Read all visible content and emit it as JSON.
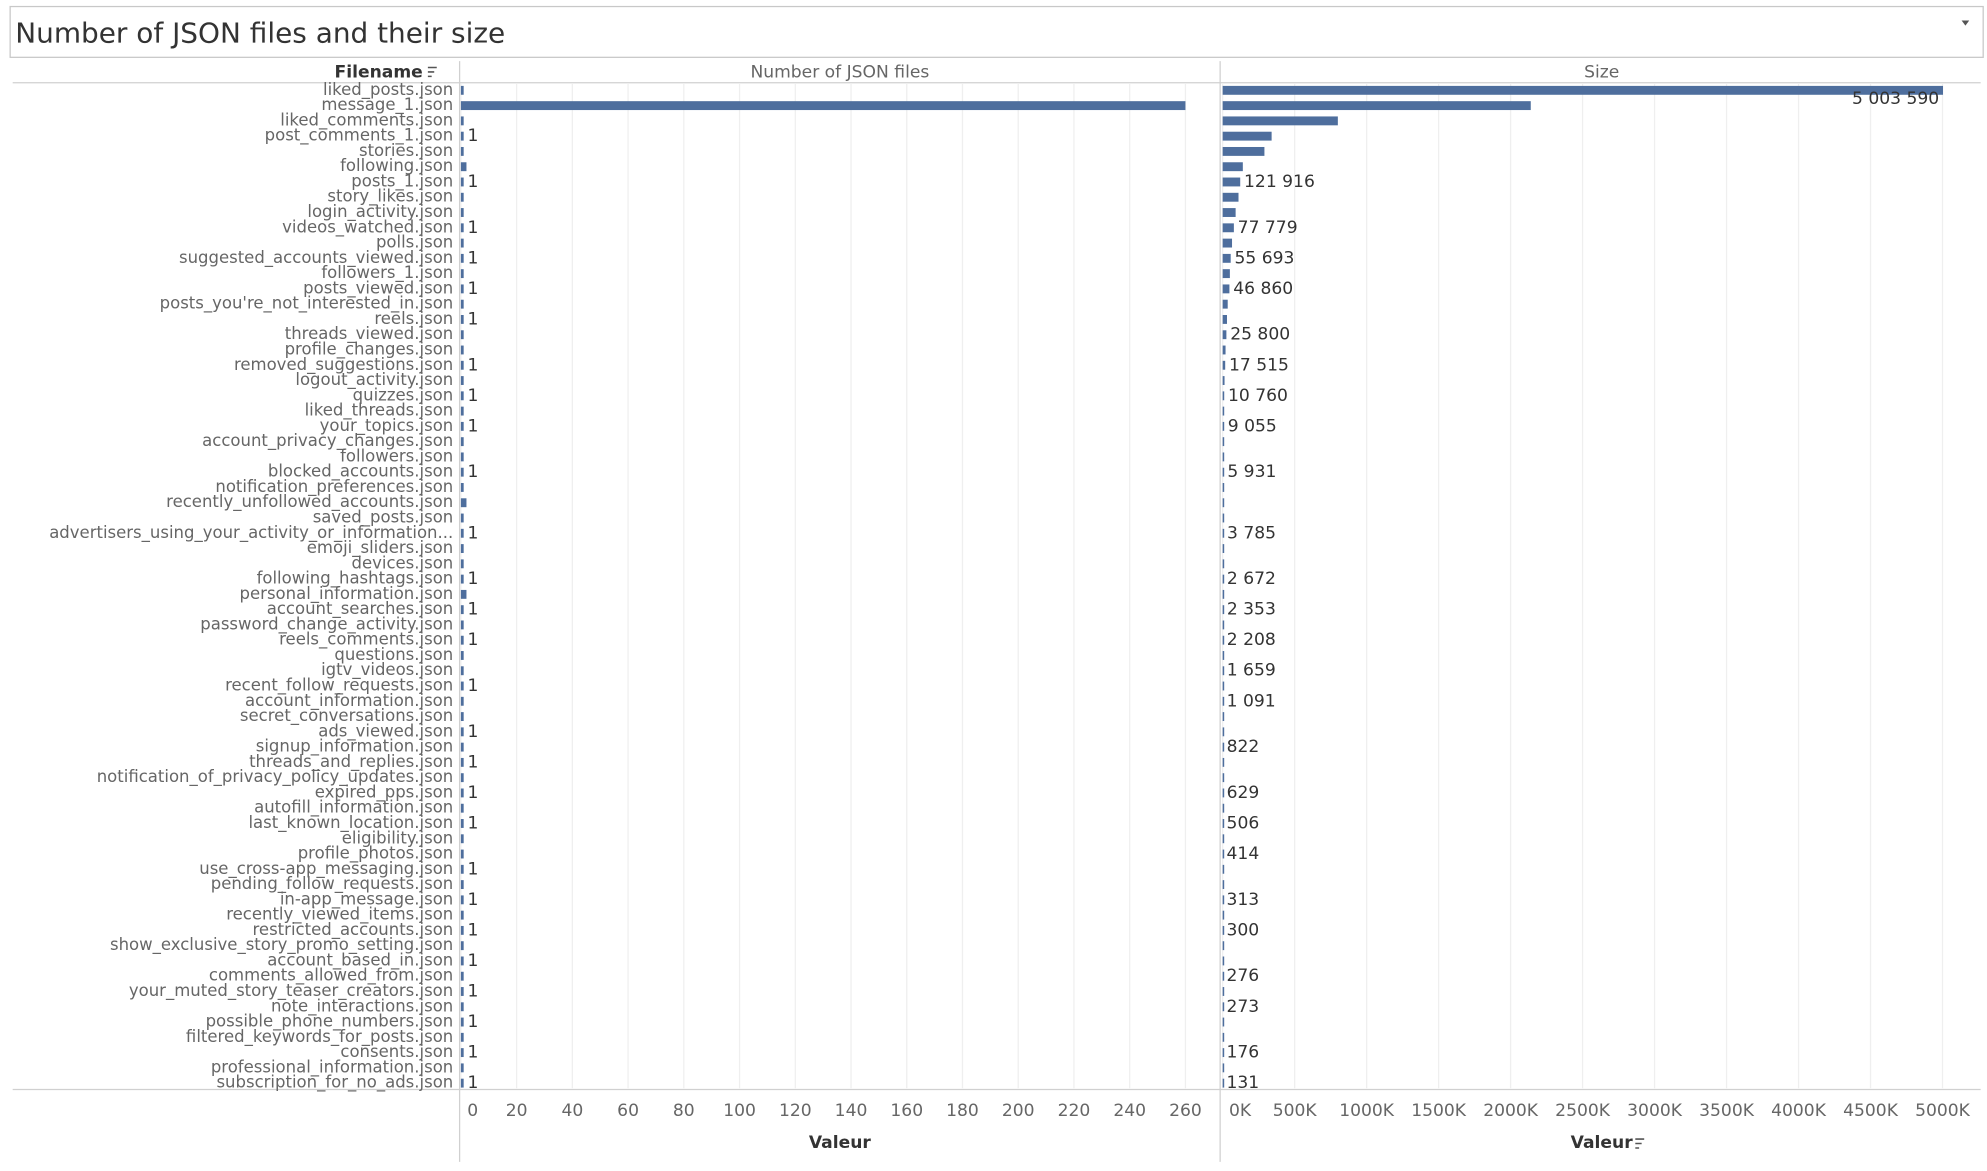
{
  "title": "Number of JSON files and their size",
  "row_header": "Filename",
  "chart_data": [
    {
      "type": "bar",
      "orientation": "horizontal",
      "title": "Number of JSON files",
      "x_label": "Valeur",
      "color": "#4e6e9d",
      "grid": true,
      "categories": [
        "liked_posts.json",
        "message_1.json",
        "liked_comments.json",
        "post_comments_1.json",
        "stories.json",
        "following.json",
        "posts_1.json",
        "story_likes.json",
        "login_activity.json",
        "videos_watched.json",
        "polls.json",
        "suggested_accounts_viewed.json",
        "followers_1.json",
        "posts_viewed.json",
        "posts_you're_not_interested_in.json",
        "reels.json",
        "threads_viewed.json",
        "profile_changes.json",
        "removed_suggestions.json",
        "logout_activity.json",
        "quizzes.json",
        "liked_threads.json",
        "your_topics.json",
        "account_privacy_changes.json",
        "followers.json",
        "blocked_accounts.json",
        "notification_preferences.json",
        "recently_unfollowed_accounts.json",
        "saved_posts.json",
        "advertisers_using_your_activity_or_information...",
        "emoji_sliders.json",
        "devices.json",
        "following_hashtags.json",
        "personal_information.json",
        "account_searches.json",
        "password_change_activity.json",
        "reels_comments.json",
        "questions.json",
        "igtv_videos.json",
        "recent_follow_requests.json",
        "account_information.json",
        "secret_conversations.json",
        "ads_viewed.json",
        "signup_information.json",
        "threads_and_replies.json",
        "notification_of_privacy_policy_updates.json",
        "expired_pps.json",
        "autofill_information.json",
        "last_known_location.json",
        "eligibility.json",
        "profile_photos.json",
        "use_cross-app_messaging.json",
        "pending_follow_requests.json",
        "in-app_message.json",
        "recently_viewed_items.json",
        "restricted_accounts.json",
        "show_exclusive_story_promo_setting.json",
        "account_based_in.json",
        "comments_allowed_from.json",
        "your_muted_story_teaser_creators.json",
        "note_interactions.json",
        "possible_phone_numbers.json",
        "filtered_keywords_for_posts.json",
        "consents.json",
        "professional_information.json",
        "subscription_for_no_ads.json"
      ],
      "values": [
        1,
        260,
        1,
        1,
        1,
        2,
        1,
        1,
        1,
        1,
        1,
        1,
        1,
        1,
        1,
        1,
        1,
        1,
        1,
        1,
        1,
        1,
        1,
        1,
        1,
        1,
        1,
        2,
        1,
        1,
        1,
        1,
        1,
        2,
        1,
        1,
        1,
        1,
        1,
        1,
        1,
        1,
        1,
        1,
        1,
        1,
        1,
        1,
        1,
        1,
        1,
        1,
        1,
        1,
        1,
        1,
        1,
        1,
        1,
        1,
        1,
        1,
        1,
        1,
        1,
        1
      ],
      "value_labels": [
        null,
        null,
        null,
        "1",
        null,
        null,
        "1",
        null,
        null,
        "1",
        null,
        "1",
        null,
        "1",
        null,
        "1",
        null,
        null,
        "1",
        null,
        "1",
        null,
        "1",
        null,
        null,
        "1",
        null,
        null,
        null,
        "1",
        null,
        null,
        "1",
        null,
        "1",
        null,
        "1",
        null,
        null,
        "1",
        null,
        null,
        "1",
        null,
        "1",
        null,
        "1",
        null,
        "1",
        null,
        null,
        "1",
        null,
        "1",
        null,
        "1",
        null,
        "1",
        null,
        "1",
        null,
        "1",
        null,
        "1",
        null,
        "1"
      ],
      "xlim": [
        0,
        272
      ],
      "xticks": [
        0,
        20,
        40,
        60,
        80,
        100,
        120,
        140,
        160,
        180,
        200,
        220,
        240,
        260
      ]
    },
    {
      "type": "bar",
      "orientation": "horizontal",
      "title": "Size",
      "x_label": "Valeur",
      "color": "#4e6e9d",
      "grid": true,
      "values": [
        5003590,
        2140000,
        800000,
        340000,
        290000,
        140000,
        121916,
        110000,
        90000,
        77779,
        65000,
        55693,
        50000,
        46860,
        35000,
        30000,
        25800,
        20000,
        17515,
        13000,
        10760,
        10000,
        9055,
        7000,
        6500,
        5931,
        5000,
        4500,
        4000,
        3785,
        3200,
        2900,
        2672,
        2500,
        2353,
        2300,
        2208,
        1900,
        1659,
        1300,
        1091,
        950,
        900,
        822,
        750,
        700,
        629,
        560,
        506,
        450,
        414,
        380,
        340,
        313,
        305,
        300,
        290,
        280,
        276,
        275,
        273,
        220,
        190,
        176,
        150,
        131
      ],
      "value_labels": [
        "5 003 590",
        null,
        null,
        null,
        null,
        null,
        "121 916",
        null,
        null,
        "77 779",
        null,
        "55 693",
        null,
        "46 860",
        null,
        null,
        "25 800",
        null,
        "17 515",
        null,
        "10 760",
        null,
        "9 055",
        null,
        null,
        "5 931",
        null,
        null,
        null,
        "3 785",
        null,
        null,
        "2 672",
        null,
        "2 353",
        null,
        "2 208",
        null,
        "1 659",
        null,
        "1 091",
        null,
        null,
        "822",
        null,
        null,
        "629",
        null,
        "506",
        null,
        "414",
        null,
        null,
        "313",
        null,
        "300",
        null,
        null,
        "276",
        null,
        "273",
        null,
        null,
        "176",
        null,
        "131"
      ],
      "xlim": [
        0,
        5265000
      ],
      "xticks": [
        {
          "value": 0,
          "label": "0K"
        },
        {
          "value": 500000,
          "label": "500K"
        },
        {
          "value": 1000000,
          "label": "1000K"
        },
        {
          "value": 1500000,
          "label": "1500K"
        },
        {
          "value": 2000000,
          "label": "2000K"
        },
        {
          "value": 2500000,
          "label": "2500K"
        },
        {
          "value": 3000000,
          "label": "3000K"
        },
        {
          "value": 3500000,
          "label": "3500K"
        },
        {
          "value": 4000000,
          "label": "4000K"
        },
        {
          "value": 4500000,
          "label": "4500K"
        },
        {
          "value": 5000000,
          "label": "5000K"
        }
      ]
    }
  ]
}
